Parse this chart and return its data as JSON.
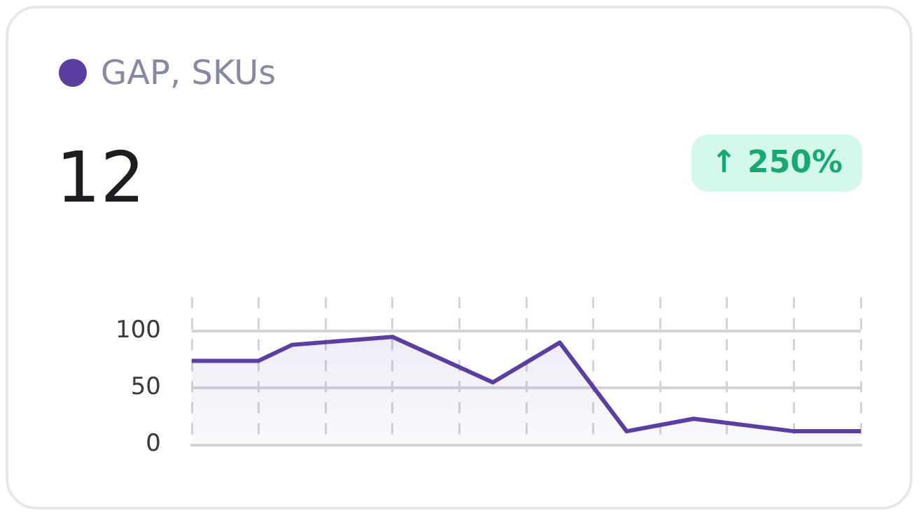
{
  "chart_data": {
    "type": "area",
    "title": "12",
    "annotations": [
      "↑ 250%"
    ],
    "categories": [
      null,
      null,
      null,
      null,
      null,
      null,
      null,
      null,
      null,
      null,
      null,
      null,
      null,
      null,
      null,
      null,
      null,
      null,
      null,
      null,
      null
    ],
    "series": [
      {
        "name": "GAP, SKUs",
        "color": "#5b3fa0",
        "values": [
          74,
          null,
          74,
          88,
          null,
          null,
          95,
          null,
          null,
          55,
          null,
          90,
          null,
          12,
          null,
          23,
          null,
          null,
          12,
          null,
          12
        ]
      }
    ],
    "ylim": [
      0,
      130
    ],
    "yticks": [
      0,
      50,
      100
    ],
    "grid": true,
    "tick_labels": "y",
    "legend": "top left",
    "marker": "none",
    "line_style": "solid"
  }
}
